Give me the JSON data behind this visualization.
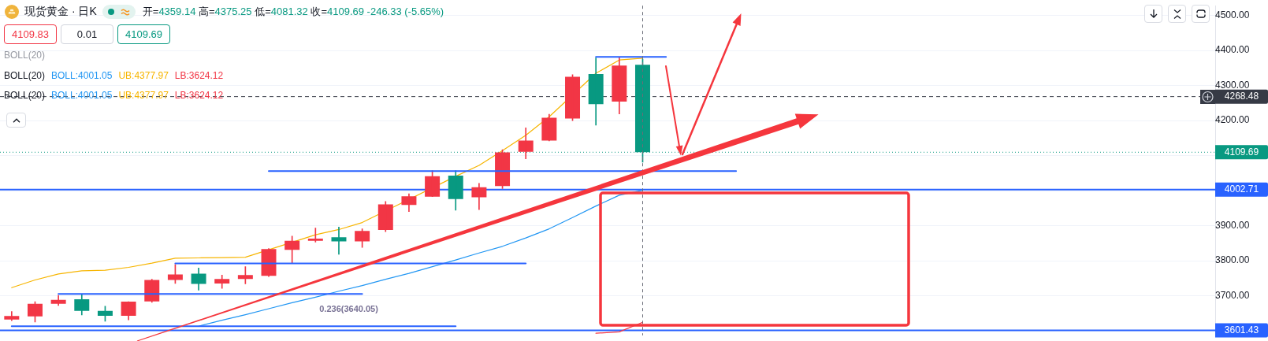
{
  "chart_data": {
    "type": "candlestick",
    "title": "现货黄金 · 日K",
    "subtitle": "开=4359.14 高=4375.25 低=4081.32 收=4109.69 -246.33 (-5.65%)",
    "categories": [
      null,
      null,
      null,
      null,
      null,
      null,
      null,
      null,
      null,
      null,
      null,
      null,
      null,
      null,
      null,
      null,
      null,
      null,
      null,
      null,
      null,
      null,
      null,
      null,
      null,
      null,
      null,
      null,
      null,
      null,
      null,
      null,
      null,
      null,
      null,
      null,
      null,
      null,
      null,
      null,
      null,
      null,
      null,
      null,
      null,
      null,
      null,
      null,
      null,
      null,
      null,
      null
    ],
    "ohlc": [
      [
        3632,
        3655,
        3629,
        3642
      ],
      [
        3641,
        3683,
        3625,
        3677
      ],
      [
        3677,
        3701,
        3672,
        3688
      ],
      [
        3690,
        3705,
        3645,
        3657
      ],
      [
        3657,
        3670,
        3627,
        3643
      ],
      [
        3643,
        3683,
        3631,
        3683
      ],
      [
        3684,
        3747,
        3681,
        3745
      ],
      [
        3745,
        3789,
        3735,
        3761
      ],
      [
        3763,
        3779,
        3716,
        3734
      ],
      [
        3735,
        3759,
        3721,
        3748
      ],
      [
        3748,
        3783,
        3734,
        3759
      ],
      [
        3757,
        3835,
        3755,
        3833
      ],
      [
        3831,
        3870,
        3793,
        3857
      ],
      [
        3857,
        3893,
        3853,
        3863
      ],
      [
        3867,
        3896,
        3818,
        3855
      ],
      [
        3855,
        3891,
        3838,
        3885
      ],
      [
        3888,
        3969,
        3883,
        3961
      ],
      [
        3959,
        3991,
        3940,
        3984
      ],
      [
        3983,
        4057,
        3983,
        4041
      ],
      [
        4043,
        4057,
        3944,
        3976
      ],
      [
        3981,
        4021,
        3946,
        4010
      ],
      [
        4013,
        4117,
        4006,
        4109
      ],
      [
        4111,
        4179,
        4091,
        4143
      ],
      [
        4143,
        4218,
        4142,
        4208
      ],
      [
        4206,
        4331,
        4200,
        4325
      ],
      [
        4333,
        4379,
        4187,
        4247
      ],
      [
        4254,
        4380,
        4219,
        4357
      ],
      [
        4359.14,
        4375.25,
        4081.32,
        4109.69
      ],
      null,
      null,
      null,
      null,
      null,
      null,
      null,
      null,
      null,
      null,
      null,
      null,
      null,
      null,
      null,
      null,
      null,
      null,
      null,
      null,
      null,
      null,
      null,
      null
    ],
    "colors": [
      "#f23645",
      "#f23645",
      "#f23645",
      "#089981",
      "#089981",
      "#f23645",
      "#f23645",
      "#f23645",
      "#089981",
      "#f23645",
      "#f23645",
      "#f23645",
      "#f23645",
      "#f23645",
      "#089981",
      "#f23645",
      "#f23645",
      "#f23645",
      "#f23645",
      "#089981",
      "#f23645",
      "#f23645",
      "#f23645",
      "#f23645",
      "#f23645",
      "#089981",
      "#f23645",
      "#089981",
      null,
      null,
      null,
      null,
      null,
      null,
      null,
      null,
      null,
      null,
      null,
      null,
      null,
      null,
      null,
      null,
      null,
      null,
      null,
      null,
      null,
      null,
      null,
      null
    ],
    "series": [
      {
        "name": "BOLL:4001.05",
        "type": "line",
        "color": "#2196f3",
        "values": [
          null,
          null,
          null,
          null,
          null,
          null,
          null,
          null,
          3613,
          3630,
          3646,
          3663,
          3680,
          3696,
          3713,
          3729,
          3747,
          3764,
          3783,
          3802,
          3822,
          3841,
          3865,
          3891,
          3923,
          3956,
          3987,
          4001.05,
          null,
          null,
          null,
          null,
          null,
          null,
          null,
          null,
          null,
          null,
          null,
          null,
          null,
          null,
          null,
          null,
          null,
          null,
          null,
          null,
          null,
          null,
          null,
          null
        ]
      },
      {
        "name": "UB:4377.97",
        "type": "line",
        "color": "#f7b500",
        "values": [
          3723,
          3745,
          3762,
          3771,
          3773,
          3781,
          3793,
          3807,
          3808,
          3809,
          3810,
          null,
          null,
          3874,
          3889,
          3909,
          null,
          null,
          null,
          4041,
          4072,
          4114,
          4158,
          4211,
          null,
          4335,
          4373,
          4377.97,
          null,
          null,
          null,
          null,
          null,
          null,
          null,
          null,
          null,
          null,
          null,
          null,
          null,
          null,
          null,
          null,
          null,
          null,
          null,
          null,
          null,
          null,
          null,
          null
        ]
      },
      {
        "name": "LB:3624.12",
        "type": "line",
        "color": "#f23645",
        "values": [
          null,
          null,
          null,
          null,
          null,
          null,
          null,
          null,
          null,
          null,
          null,
          null,
          null,
          null,
          null,
          null,
          null,
          null,
          null,
          null,
          null,
          null,
          null,
          null,
          null,
          3593,
          3597,
          3624.12,
          null,
          null,
          null,
          null,
          null,
          null,
          null,
          null,
          null,
          null,
          null,
          null,
          null,
          null,
          null,
          null,
          null,
          null,
          null,
          null,
          null,
          null,
          null,
          null
        ]
      },
      {
        "type": "line",
        "color": "#2962ff",
        "values": [
          3613,
          3613,
          3613,
          3613,
          3613,
          3613,
          3613,
          3613,
          3613,
          3613,
          3613,
          3613,
          3613,
          3613,
          3613,
          3613,
          3613,
          3613,
          3613,
          3613,
          null,
          null,
          null,
          null,
          null,
          null,
          null,
          null,
          null,
          null,
          null,
          null,
          null,
          null,
          null,
          null,
          null,
          null,
          null,
          null,
          null,
          null,
          null,
          null,
          null,
          null,
          null,
          null,
          null,
          null,
          null,
          null
        ]
      },
      {
        "type": "line",
        "color": "#2962ff",
        "values": [
          null,
          null,
          3705,
          3705,
          3705,
          3705,
          3705,
          3705,
          3705,
          3705,
          3705,
          3705,
          3705,
          3705,
          3705,
          3705,
          null,
          null,
          null,
          null,
          null,
          null,
          null,
          null,
          null,
          null,
          null,
          null,
          null,
          null,
          null,
          null,
          null,
          null,
          null,
          null,
          null,
          null,
          null,
          null,
          null,
          null,
          null,
          null,
          null,
          null,
          null,
          null,
          null,
          null,
          null,
          null
        ]
      },
      {
        "type": "line",
        "color": "#2962ff",
        "values": [
          null,
          null,
          null,
          null,
          null,
          null,
          null,
          3792,
          3792,
          3792,
          3792,
          3792,
          3792,
          3792,
          3792,
          3792,
          3792,
          3792,
          3792,
          3792,
          3792,
          3792,
          3792,
          null,
          null,
          null,
          null,
          null,
          null,
          null,
          null,
          null,
          null,
          null,
          null,
          null,
          null,
          null,
          null,
          null,
          null,
          null,
          null,
          null,
          null,
          null,
          null,
          null,
          null,
          null,
          null,
          null
        ]
      },
      {
        "type": "line",
        "color": "#2962ff",
        "values": [
          null,
          null,
          null,
          null,
          null,
          null,
          null,
          null,
          null,
          null,
          null,
          4056,
          4056,
          4056,
          4056,
          4056,
          4056,
          4056,
          4056,
          4056,
          4056,
          4056,
          4056,
          4056,
          4056,
          4056,
          4056,
          null,
          4056,
          4056,
          4056,
          4056,
          null,
          null,
          null,
          null,
          null,
          null,
          null,
          null,
          null,
          null,
          null,
          null,
          null,
          null,
          null,
          null,
          null,
          null,
          null,
          null
        ]
      },
      {
        "type": "line",
        "color": "#2962ff",
        "values": [
          null,
          null,
          null,
          null,
          null,
          null,
          null,
          null,
          null,
          null,
          null,
          null,
          null,
          null,
          null,
          null,
          null,
          null,
          null,
          null,
          null,
          null,
          null,
          null,
          null,
          4382,
          4382,
          4382,
          4382,
          null,
          null,
          null,
          null,
          null,
          null,
          null,
          null,
          null,
          null,
          null,
          null,
          null,
          null,
          null,
          null,
          null,
          null,
          null,
          null,
          null,
          null,
          null
        ]
      }
    ],
    "ylim": [
      3587,
      4528
    ],
    "yticks": [
      {
        "value": 3700,
        "label": "3700.00"
      },
      {
        "value": 3800,
        "label": "3800.00"
      },
      {
        "value": 3900,
        "label": "3900.00"
      },
      {
        "value": 4000,
        "label": null
      },
      {
        "value": 4100,
        "label": null
      },
      {
        "value": 4200,
        "label": "4200.00"
      },
      {
        "value": 4300,
        "label": "4300.00"
      },
      {
        "value": 4400,
        "label": "4400.00"
      },
      {
        "value": 4500,
        "label": "4500.00"
      }
    ],
    "ref_lines": [
      {
        "axis": "y",
        "value": 4268.48,
        "color": "#363a45",
        "line_style": "dashed"
      },
      {
        "axis": "y",
        "value": 4109.69,
        "color": "#089981",
        "line_style": "dotted"
      },
      {
        "axis": "y",
        "value": 4002.71,
        "color": "#2962ff"
      },
      {
        "axis": "y",
        "value": 3601.43,
        "color": "#2962ff"
      }
    ],
    "annotations": [
      "4109.83",
      "0.01",
      "4109.69",
      "0.236(3640.05)",
      "4268.48",
      "4109.69",
      "4002.71",
      "3601.43"
    ],
    "legend": "top left",
    "legend_title": "BOLL(20)",
    "grid": "y",
    "tick_labels": "y"
  }
}
